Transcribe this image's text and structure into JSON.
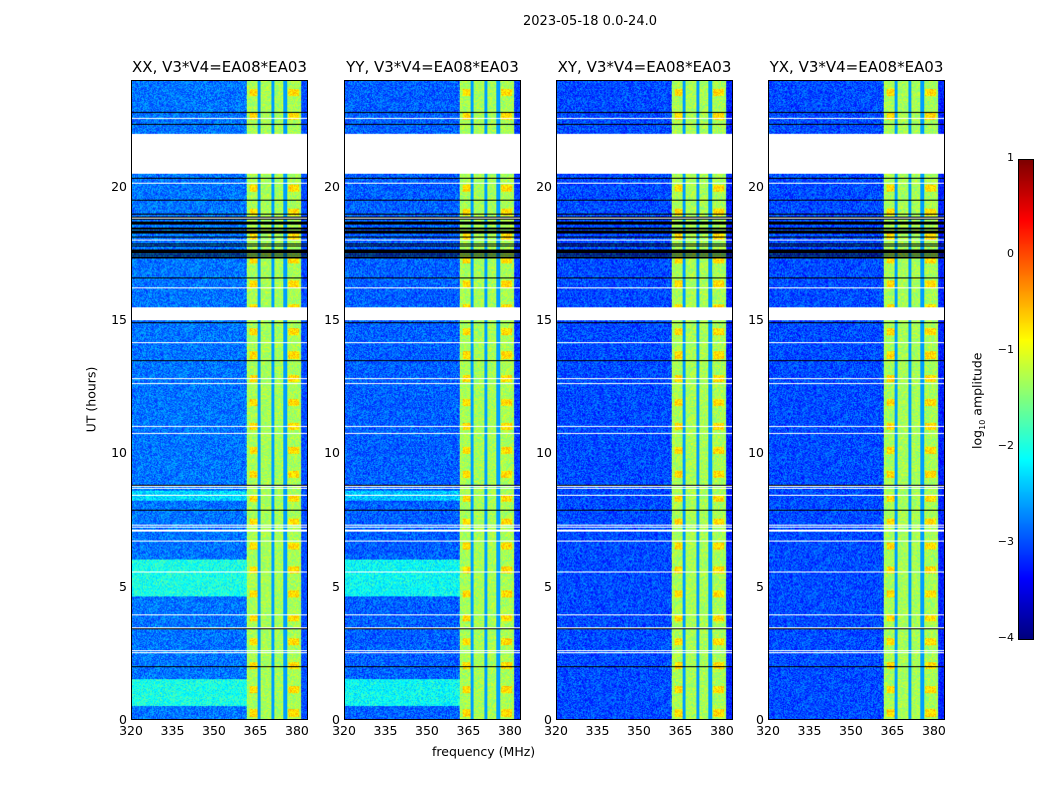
{
  "chart_data": {
    "type": "heatmap",
    "title": "2023-05-18 0.0-24.0",
    "xlabel": "frequency (MHz)",
    "ylabel": "UT (hours)",
    "xlim": [
      320,
      384
    ],
    "ylim": [
      0,
      24
    ],
    "xticks": [
      "320",
      "335",
      "350",
      "365",
      "380"
    ],
    "yticks": [
      "0",
      "5",
      "10",
      "15",
      "20"
    ],
    "panels": [
      {
        "title": "XX, V3*V4=EA08*EA03"
      },
      {
        "title": "YY, V3*V4=EA08*EA03"
      },
      {
        "title": "XY, V3*V4=EA08*EA03"
      },
      {
        "title": "YX, V3*V4=EA08*EA03"
      }
    ],
    "flagged_hours": [
      [
        20.5,
        22.0
      ],
      [
        15.0,
        15.5
      ]
    ],
    "rfi_band_mhz": [
      362,
      382
    ],
    "colorbar": {
      "label_prefix": "log",
      "label_sub": "10",
      "label_suffix": " amplitude",
      "colormap": "jet",
      "range": [
        -4,
        1
      ],
      "ticks": [
        "1",
        "0",
        "−1",
        "−2",
        "−3",
        "−4"
      ]
    }
  }
}
